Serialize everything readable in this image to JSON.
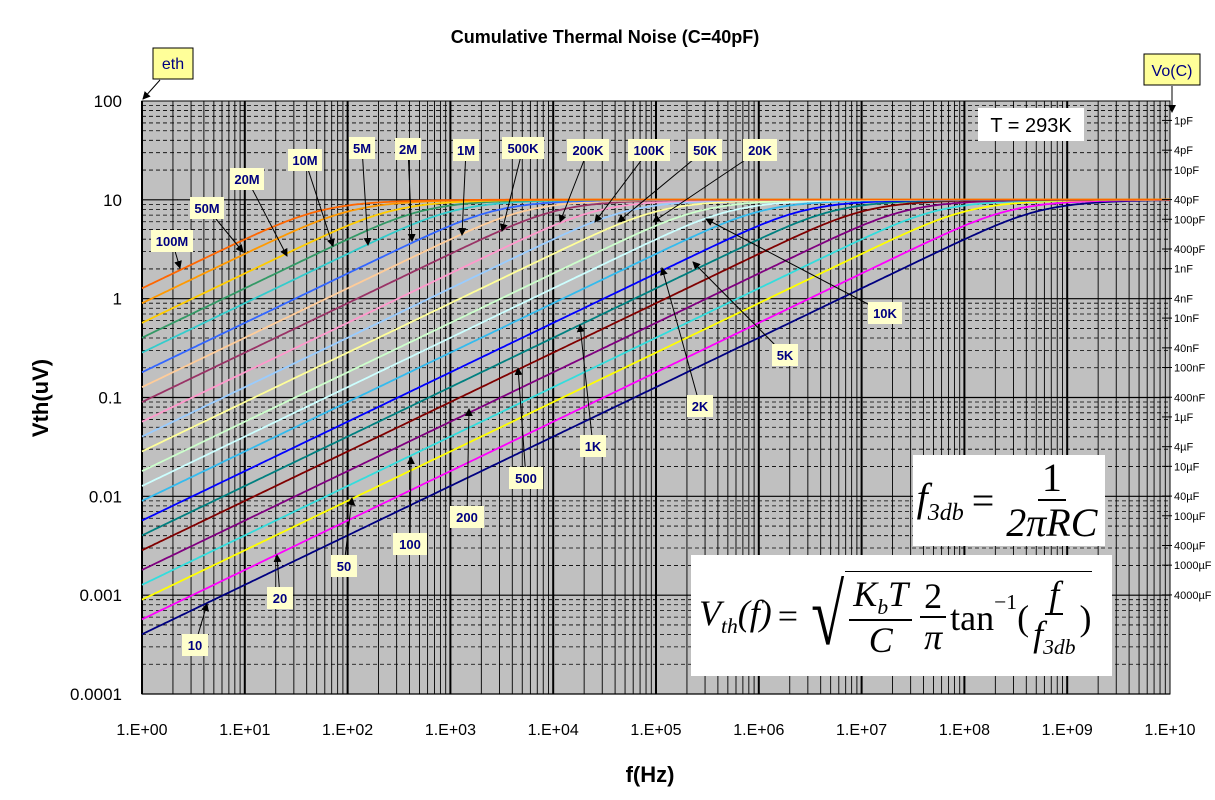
{
  "chart_data": {
    "type": "line",
    "title": "Cumulative Thermal Noise (C=40pF)",
    "xlabel": "f(Hz)",
    "ylabel": "Vth(uV)",
    "xscale": "log",
    "yscale": "log",
    "xlim": [
      1,
      10000000000
    ],
    "ylim": [
      0.0001,
      100
    ],
    "x_tick_labels": [
      "1.E+00",
      "1.E+01",
      "1.E+02",
      "1.E+03",
      "1.E+04",
      "1.E+05",
      "1.E+06",
      "1.E+07",
      "1.E+08",
      "1.E+09",
      "1.E+10"
    ],
    "y_tick_labels": [
      "100",
      "10",
      "1",
      "0.1",
      "0.01",
      "0.001",
      "0.0001"
    ],
    "y_tick_values": [
      100,
      10,
      1,
      0.1,
      0.01,
      0.001,
      0.0001
    ],
    "grid": true,
    "capacitance_F": 4e-11,
    "temperature_K": 293,
    "formula": "Vth(f) = sqrt(Kb*T/C * 2/pi * atan(f/f3db)), f3db = 1/(2*pi*R*C)",
    "series": [
      {
        "name": "10",
        "R": 10,
        "color": "#000080"
      },
      {
        "name": "20",
        "R": 20,
        "color": "#ff00ff"
      },
      {
        "name": "50",
        "R": 50,
        "color": "#ffff00"
      },
      {
        "name": "100",
        "R": 100,
        "color": "#33dddd"
      },
      {
        "name": "200",
        "R": 200,
        "color": "#800080"
      },
      {
        "name": "500",
        "R": 500,
        "color": "#800000"
      },
      {
        "name": "1K",
        "R": 1000,
        "color": "#008080"
      },
      {
        "name": "2K",
        "R": 2000,
        "color": "#0000ff"
      },
      {
        "name": "5K",
        "R": 5000,
        "color": "#33bbee"
      },
      {
        "name": "10K",
        "R": 10000,
        "color": "#ccffff"
      },
      {
        "name": "20K",
        "R": 20000,
        "color": "#ccffcc"
      },
      {
        "name": "50K",
        "R": 50000,
        "color": "#ffff99"
      },
      {
        "name": "100K",
        "R": 100000,
        "color": "#99ccff"
      },
      {
        "name": "200K",
        "R": 200000,
        "color": "#ff99cc"
      },
      {
        "name": "500K",
        "R": 500000,
        "color": "#993366"
      },
      {
        "name": "1M",
        "R": 1000000,
        "color": "#ffcc99"
      },
      {
        "name": "2M",
        "R": 2000000,
        "color": "#3366ff"
      },
      {
        "name": "5M",
        "R": 5000000,
        "color": "#33cccc"
      },
      {
        "name": "10M",
        "R": 10000000,
        "color": "#339966"
      },
      {
        "name": "20M",
        "R": 20000000,
        "color": "#ffcc00"
      },
      {
        "name": "50M",
        "R": 50000000,
        "color": "#ff9900"
      },
      {
        "name": "100M",
        "R": 100000000,
        "color": "#ff6600"
      }
    ],
    "secondary_axis": {
      "label": "Vo(C)",
      "ticks": [
        {
          "label": "1pF",
          "C": 1e-12
        },
        {
          "label": "4pF",
          "C": 4e-12
        },
        {
          "label": "10pF",
          "C": 1e-11
        },
        {
          "label": "40pF",
          "C": 4e-11
        },
        {
          "label": "100pF",
          "C": 1e-10
        },
        {
          "label": "400pF",
          "C": 4e-10
        },
        {
          "label": "1nF",
          "C": 1e-09
        },
        {
          "label": "4nF",
          "C": 4e-09
        },
        {
          "label": "10nF",
          "C": 1e-08
        },
        {
          "label": "40nF",
          "C": 4e-08
        },
        {
          "label": "100nF",
          "C": 1e-07
        },
        {
          "label": "400nF",
          "C": 4e-07
        },
        {
          "label": "1µF",
          "C": 1e-06
        },
        {
          "label": "4µF",
          "C": 4e-06
        },
        {
          "label": "10µF",
          "C": 1e-05
        },
        {
          "label": "40µF",
          "C": 4e-05
        },
        {
          "label": "100µF",
          "C": 0.0001
        },
        {
          "label": "400µF",
          "C": 0.0004
        },
        {
          "label": "1000µF",
          "C": 0.001
        },
        {
          "label": "4000µF",
          "C": 0.004
        }
      ]
    },
    "annotations": {
      "eth": "eth",
      "temperature": "T = 293K"
    }
  },
  "formulas": {
    "f3db_lhs": "f",
    "f3db_sub": "3db",
    "eq": "=",
    "one": "1",
    "two_pi_rc": "2πRC",
    "vth_lhs": "V",
    "vth_sub": "th",
    "vth_arg": "(f)",
    "kb": "K",
    "kb_sub": "b",
    "t": "T",
    "c": "C",
    "two": "2",
    "pi": "π",
    "tan": "tan",
    "inv": "−1",
    "open": "(",
    "close": ")",
    "f": "f"
  }
}
